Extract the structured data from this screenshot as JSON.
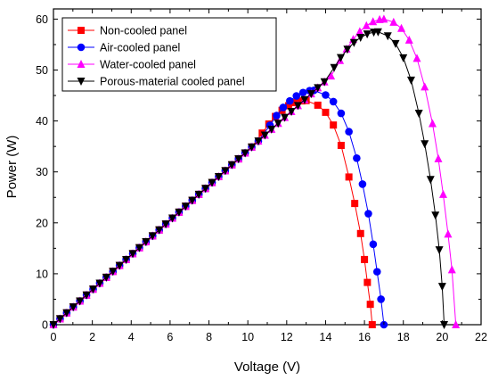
{
  "chart_data": {
    "type": "line",
    "title": "",
    "xlabel": "Voltage (V)",
    "ylabel": "Power (W)",
    "xlim": [
      0,
      22
    ],
    "ylim": [
      0,
      62
    ],
    "x_ticks": [
      0,
      2,
      4,
      6,
      8,
      10,
      12,
      14,
      16,
      18,
      20,
      22
    ],
    "y_ticks": [
      0,
      10,
      20,
      30,
      40,
      50,
      60
    ],
    "grid": false,
    "legend_placement": "top-left",
    "slope_w_per_v": 3.42,
    "series": [
      {
        "name": "Non-cooled panel",
        "color": "#ff0000",
        "marker": "square",
        "v_peak": 13.0,
        "p_peak": 44,
        "v_oc": 16.4,
        "tail": [
          [
            13.6,
            43.1
          ],
          [
            14.0,
            41.7
          ],
          [
            14.4,
            39.2
          ],
          [
            14.8,
            35.2
          ],
          [
            15.2,
            29.0
          ],
          [
            15.5,
            23.8
          ],
          [
            15.8,
            17.9
          ],
          [
            16.0,
            12.8
          ],
          [
            16.15,
            8.3
          ],
          [
            16.3,
            4.0
          ],
          [
            16.4,
            0.0
          ]
        ]
      },
      {
        "name": "Air-cooled panel",
        "color": "#0000ff",
        "marker": "circle",
        "v_peak": 13.4,
        "p_peak": 46,
        "v_oc": 17.0,
        "tail": [
          [
            14.0,
            45.1
          ],
          [
            14.4,
            43.8
          ],
          [
            14.8,
            41.5
          ],
          [
            15.2,
            37.9
          ],
          [
            15.6,
            32.7
          ],
          [
            15.9,
            27.6
          ],
          [
            16.2,
            21.8
          ],
          [
            16.45,
            15.8
          ],
          [
            16.65,
            10.4
          ],
          [
            16.85,
            5.0
          ],
          [
            17.0,
            0.0
          ]
        ]
      },
      {
        "name": "Water-cooled panel",
        "color": "#ff00ff",
        "marker": "triangle-up",
        "v_peak": 17.0,
        "p_peak": 60,
        "v_oc": 20.7,
        "tail": [
          [
            17.5,
            59.4
          ],
          [
            17.9,
            58.2
          ],
          [
            18.3,
            55.9
          ],
          [
            18.7,
            52.3
          ],
          [
            19.1,
            46.7
          ],
          [
            19.5,
            39.5
          ],
          [
            19.8,
            32.6
          ],
          [
            20.05,
            25.6
          ],
          [
            20.3,
            17.8
          ],
          [
            20.5,
            10.8
          ],
          [
            20.7,
            0.0
          ]
        ]
      },
      {
        "name": "Porous-material cooled panel",
        "color": "#000000",
        "marker": "triangle-down",
        "v_peak": 16.7,
        "p_peak": 57.5,
        "v_oc": 20.1,
        "tail": [
          [
            17.2,
            56.7
          ],
          [
            17.6,
            55.2
          ],
          [
            18.0,
            52.4
          ],
          [
            18.4,
            48.0
          ],
          [
            18.8,
            41.5
          ],
          [
            19.1,
            35.5
          ],
          [
            19.4,
            28.5
          ],
          [
            19.65,
            21.5
          ],
          [
            19.85,
            14.7
          ],
          [
            20.0,
            7.5
          ],
          [
            20.1,
            0.0
          ]
        ]
      }
    ]
  }
}
